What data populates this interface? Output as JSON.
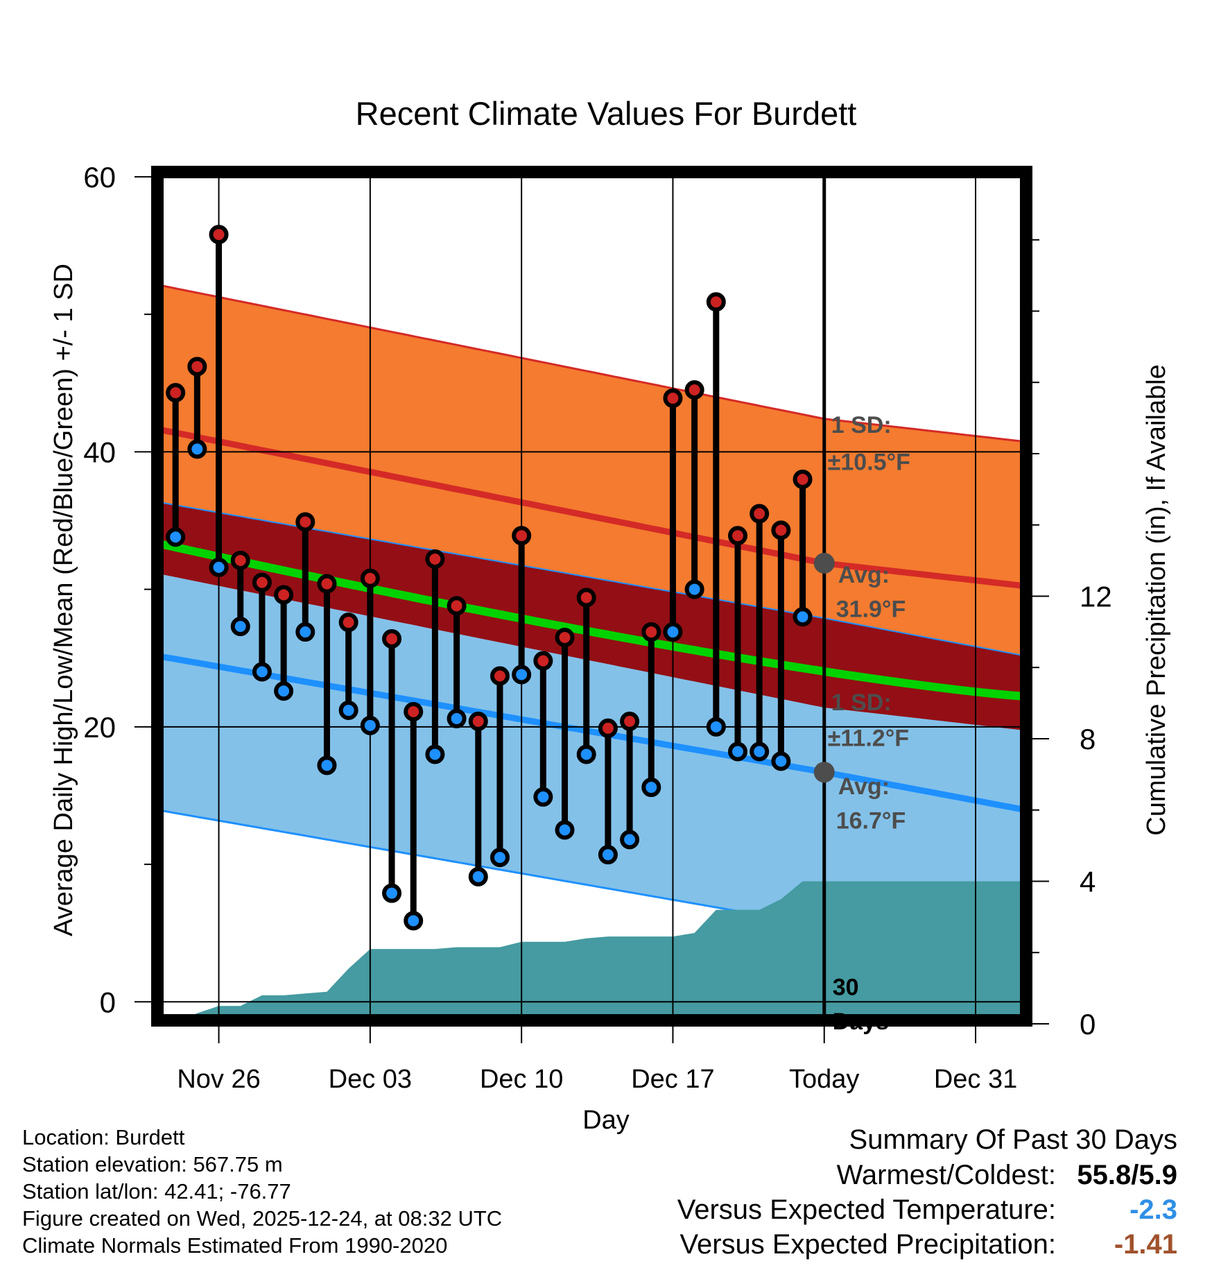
{
  "chart_data": {
    "type": "line",
    "title": "Recent Climate Values For Burdett",
    "xlabel": "Day",
    "ylabel_left": "Average Daily High/Low/Mean (Red/Blue/Green) +/- 1 SD",
    "ylabel_right": "Cumulative Precipitation (in), If Available",
    "x_ticks": [
      "Nov 26",
      "Dec 03",
      "Dec 10",
      "Dec 17",
      "Today",
      "Dec 31"
    ],
    "y_left_ticks": [
      0,
      20,
      40,
      60
    ],
    "y_left_range": [
      -1.6,
      60.6
    ],
    "y_right_ticks": [
      0,
      4,
      8,
      12
    ],
    "y_right_range": [
      0,
      24
    ],
    "days_span": [
      -31,
      9.5
    ],
    "observed_days": [
      -30,
      -29,
      -28,
      -27,
      -26,
      -25,
      -24,
      -23,
      -22,
      -21,
      -20,
      -19,
      -18,
      -17,
      -16,
      -15,
      -14,
      -13,
      -12,
      -11,
      -10,
      -9,
      -8,
      -7,
      -6,
      -5,
      -4,
      -3,
      -2,
      -1
    ],
    "observed_high": [
      44.3,
      46.2,
      55.8,
      32.1,
      30.5,
      29.6,
      34.9,
      30.4,
      27.6,
      30.8,
      26.4,
      21.1,
      32.2,
      28.8,
      20.4,
      23.7,
      33.9,
      24.8,
      26.5,
      29.4,
      19.9,
      20.4,
      26.9,
      43.9,
      44.5,
      50.9,
      33.9,
      35.5,
      34.3,
      38.0
    ],
    "observed_low": [
      33.8,
      40.2,
      31.6,
      27.3,
      24.0,
      22.6,
      26.9,
      17.2,
      21.2,
      20.1,
      7.9,
      5.9,
      18.0,
      20.6,
      9.1,
      10.5,
      23.8,
      14.9,
      12.5,
      18.0,
      10.7,
      11.8,
      15.6,
      26.9,
      30.0,
      20.0,
      18.2,
      18.2,
      17.5,
      28.0
    ],
    "normal_high": {
      "start": 41.7,
      "today": 31.9,
      "end": 30.2
    },
    "normal_low": {
      "start": 25.2,
      "today": 16.7,
      "end": 13.9
    },
    "normal_mean": {
      "start": 33.4,
      "end": 22.2
    },
    "high_sd": 10.5,
    "low_sd": 11.2,
    "cumulative_precip_days": [
      -31,
      -30,
      -29,
      -28,
      -27,
      -26,
      -25,
      -24,
      -23,
      -22,
      -21,
      -20,
      -19,
      -18,
      -17,
      -16,
      -15,
      -14,
      -13,
      -12,
      -11,
      -10,
      -9,
      -8,
      -7,
      -6,
      -5,
      -4,
      -3,
      -2,
      -1,
      0,
      9.5
    ],
    "cumulative_precip": [
      0.0,
      0.0,
      0.3,
      0.5,
      0.5,
      0.8,
      0.8,
      0.85,
      0.9,
      1.55,
      2.1,
      2.1,
      2.1,
      2.1,
      2.15,
      2.15,
      2.15,
      2.3,
      2.3,
      2.3,
      2.4,
      2.45,
      2.45,
      2.45,
      2.45,
      2.55,
      3.2,
      3.2,
      3.2,
      3.5,
      4.0,
      4.0,
      4.0
    ],
    "annotations": {
      "high_sd_title": "1 SD:",
      "high_sd_value": "±10.5°F",
      "high_avg_title": "Avg:",
      "high_avg_value": "31.9°F",
      "low_sd_title": "1 SD:",
      "low_sd_value": "±11.2°F",
      "low_avg_title": "Avg:",
      "low_avg_value": "16.7°F",
      "days_count": "30",
      "days_word": "Days"
    },
    "colors": {
      "high_band": "#f47b2f",
      "overlap_band": "#930f15",
      "low_band": "#83c1e9",
      "high_line": "#d42a27",
      "low_line": "#1e90ff",
      "mean_line": "#00d200",
      "precip_fill": "#459ba1",
      "high_dot": "#cc2222",
      "low_dot": "#1e90ff",
      "annotation_text": "#4d4d4d"
    }
  },
  "info": {
    "location": "Location: Burdett",
    "elevation": "Station elevation: 567.75 m",
    "latlon": "Station lat/lon: 42.41; -76.77",
    "created": "Figure created on Wed, 2025-12-24, at 08:32 UTC",
    "normals": "Climate Normals Estimated From 1990-2020"
  },
  "summary": {
    "title": "Summary Of Past 30 Days",
    "warmest_label": "Warmest/Coldest:",
    "warmest_value": "55.8/5.9",
    "temp_label": "Versus Expected Temperature:",
    "temp_value": "-2.3",
    "temp_color": "#2f8fe5",
    "precip_label": "Versus Expected Precipitation:",
    "precip_value": "-1.41",
    "precip_color": "#a0522d"
  }
}
